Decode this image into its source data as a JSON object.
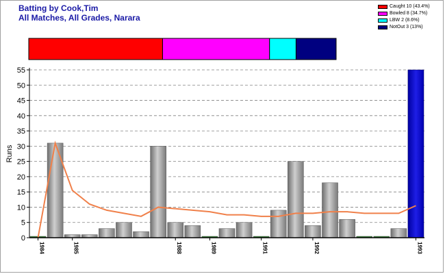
{
  "header": {
    "title": "Batting by Cook,Tim",
    "subtitle": "All Matches, All Grades, Narara"
  },
  "legend": [
    {
      "label": "Caught 10 (43.4%)",
      "color": "#ff0000",
      "pct": 43.4
    },
    {
      "label": "Bowled 8 (34.7%)",
      "color": "#ff00ff",
      "pct": 34.7
    },
    {
      "label": "LBW 2 (8.6%)",
      "color": "#00ffff",
      "pct": 8.6
    },
    {
      "label": "NotOut 3 (13%)",
      "color": "#000080",
      "pct": 13
    }
  ],
  "chart_data": {
    "type": "bar",
    "ylabel": "Runs",
    "ylim": [
      0,
      55
    ],
    "yticks": [
      0,
      5,
      10,
      15,
      20,
      25,
      30,
      35,
      40,
      45,
      50,
      55
    ],
    "grid": true,
    "values": [
      0,
      31,
      1,
      1,
      3,
      5,
      2,
      30,
      5,
      4,
      0,
      3,
      5,
      0,
      9,
      25,
      4,
      18,
      6,
      0,
      0,
      3,
      55
    ],
    "highlight_last": true,
    "series": [
      {
        "values": [
          0,
          31,
          15.5,
          11,
          9,
          8,
          7,
          10,
          9.5,
          9,
          8.5,
          7.5,
          7.5,
          7,
          7,
          8,
          8,
          8.5,
          8.5,
          8,
          8,
          8,
          10.5
        ]
      }
    ],
    "xtick_labels": [
      {
        "index": 0,
        "label": "1984"
      },
      {
        "index": 2,
        "label": "1985"
      },
      {
        "index": 8,
        "label": "1988"
      },
      {
        "index": 10,
        "label": "1989"
      },
      {
        "index": 13,
        "label": "1991"
      },
      {
        "index": 16,
        "label": "1992"
      },
      {
        "index": 22,
        "label": "1993"
      }
    ]
  }
}
